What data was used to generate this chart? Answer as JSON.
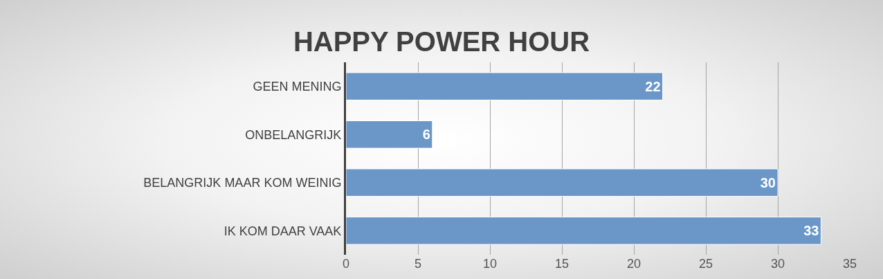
{
  "chart_data": {
    "type": "bar",
    "title": "HAPPY POWER HOUR",
    "orientation": "horizontal",
    "categories": [
      "GEEN MENING",
      "ONBELANGRIJK",
      "BELANGRIJK MAAR KOM WEINIG",
      "IK KOM DAAR VAAK"
    ],
    "values": [
      22,
      6,
      30,
      33
    ],
    "color": "#6a96c8",
    "xlim": [
      0,
      35
    ],
    "xticks": [
      0,
      5,
      10,
      15,
      20,
      25,
      30,
      35
    ],
    "grid": "x",
    "data_labels": true
  }
}
